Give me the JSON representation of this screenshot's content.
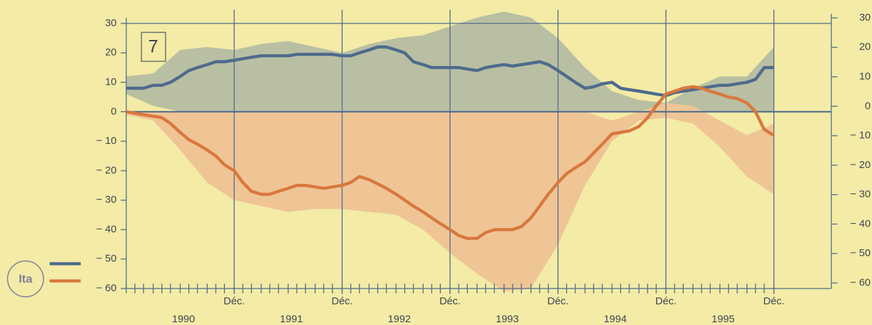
{
  "chart_data": {
    "type": "line",
    "annotation": "7",
    "legend_title": "Ita",
    "x": [
      1989.92,
      1990.0,
      1990.08,
      1990.17,
      1990.25,
      1990.33,
      1990.42,
      1990.5,
      1990.58,
      1990.67,
      1990.75,
      1990.83,
      1990.92,
      1991.0,
      1991.08,
      1991.17,
      1991.25,
      1991.33,
      1991.42,
      1991.5,
      1991.58,
      1991.67,
      1991.75,
      1991.83,
      1991.92,
      1992.0,
      1992.08,
      1992.17,
      1992.25,
      1992.33,
      1992.42,
      1992.5,
      1992.58,
      1992.67,
      1992.75,
      1992.83,
      1992.92,
      1993.0,
      1993.08,
      1993.17,
      1993.25,
      1993.33,
      1993.42,
      1993.5,
      1993.58,
      1993.67,
      1993.75,
      1993.83,
      1993.92,
      1994.0,
      1994.08,
      1994.17,
      1994.25,
      1994.33,
      1994.42,
      1994.5,
      1994.58,
      1994.67,
      1994.75,
      1994.83,
      1994.92,
      1995.0,
      1995.08,
      1995.17,
      1995.25,
      1995.33,
      1995.42,
      1995.5,
      1995.58,
      1995.67,
      1995.75,
      1995.83,
      1995.92
    ],
    "series": [
      {
        "color": "#4d6b8c",
        "values": [
          8,
          8,
          8,
          9,
          9,
          10,
          12,
          14,
          15,
          16,
          17,
          17,
          17.5,
          18,
          18.5,
          19,
          19,
          19,
          19,
          19.5,
          19.5,
          19.5,
          19.5,
          19.5,
          19,
          19,
          20,
          21,
          22,
          22,
          21,
          20,
          17,
          16,
          15,
          15,
          15,
          15,
          14.5,
          14,
          15,
          15.5,
          16,
          15.5,
          16,
          16.5,
          17,
          16,
          14,
          12,
          10,
          8,
          8.5,
          9.5,
          10,
          8,
          7.5,
          7,
          6.5,
          6,
          5.5,
          6.5,
          7,
          7.5,
          8,
          8.5,
          9,
          9,
          9.5,
          10,
          11,
          15,
          15
        ]
      },
      {
        "color": "#d9783d",
        "values": [
          0,
          -0.5,
          -1,
          -1.5,
          -2,
          -4,
          -7,
          -9.5,
          -11,
          -13,
          -15,
          -18,
          -20,
          -24,
          -27,
          -28,
          -28,
          -27,
          -26,
          -25,
          -25,
          -25.5,
          -26,
          -25.5,
          -25,
          -24,
          -22,
          -23,
          -24.5,
          -26,
          -28,
          -30,
          -32,
          -34,
          -36,
          -38,
          -40,
          -42,
          -43,
          -43,
          -41,
          -40,
          -40,
          -40,
          -39,
          -36,
          -32,
          -28,
          -24,
          -21,
          -19,
          -17,
          -14,
          -11,
          -7.5,
          -7,
          -6.5,
          -5,
          -2,
          2,
          6,
          7,
          8,
          8.5,
          8,
          7,
          6,
          5,
          4.5,
          3,
          0,
          -6,
          -8
        ]
      }
    ],
    "band_x": [
      1989.92,
      1990.17,
      1990.42,
      1990.67,
      1990.92,
      1991.17,
      1991.42,
      1991.67,
      1991.92,
      1992.17,
      1992.42,
      1992.67,
      1992.92,
      1993.17,
      1993.42,
      1993.67,
      1993.92,
      1994.17,
      1994.42,
      1994.67,
      1994.92,
      1995.17,
      1995.42,
      1995.67,
      1995.92
    ],
    "bands": [
      {
        "color": "#b9bfa2",
        "upper": [
          12,
          13,
          21,
          22,
          21,
          23,
          24,
          22,
          20,
          23,
          25,
          26,
          29,
          32,
          34,
          32,
          25,
          15,
          7,
          4,
          3,
          8,
          12,
          12,
          22
        ],
        "lower": [
          6,
          2,
          0,
          0,
          0,
          0,
          0,
          0,
          0,
          0,
          0,
          0,
          0,
          0,
          0,
          0,
          0,
          0,
          0,
          0,
          1,
          0,
          0,
          0,
          0
        ]
      },
      {
        "color": "#efc596",
        "upper": [
          0,
          0,
          0,
          0,
          0,
          0,
          0,
          0,
          0,
          0,
          0,
          0,
          0,
          0,
          0,
          0,
          0,
          0,
          -3,
          0,
          3,
          2,
          -3,
          -8,
          -4
        ],
        "lower": [
          -1,
          -3,
          -13,
          -24,
          -30,
          -32,
          -34,
          -33,
          -33,
          -34,
          -35,
          -40,
          -48,
          -55,
          -61,
          -60,
          -45,
          -25,
          -10,
          -3,
          -2,
          -4,
          -12,
          -22,
          -28
        ]
      }
    ],
    "xlim": [
      1989.92,
      1996.42
    ],
    "xticks": [
      {
        "value": 1990.92,
        "label": "Déc."
      },
      {
        "value": 1991.92,
        "label": "Déc."
      },
      {
        "value": 1992.92,
        "label": "Déc."
      },
      {
        "value": 1993.92,
        "label": "Déc."
      },
      {
        "value": 1994.92,
        "label": "Déc."
      },
      {
        "value": 1995.92,
        "label": "Déc."
      }
    ],
    "year_labels": [
      {
        "value": 1990.45,
        "label": "1990"
      },
      {
        "value": 1991.45,
        "label": "1991"
      },
      {
        "value": 1992.45,
        "label": "1992"
      },
      {
        "value": 1993.45,
        "label": "1993"
      },
      {
        "value": 1994.45,
        "label": "1994"
      },
      {
        "value": 1995.45,
        "label": "1995"
      }
    ],
    "ylim": [
      -60,
      30
    ],
    "yticks": [
      30,
      20,
      10,
      0,
      {
        "value": -10,
        "label": "− 10"
      },
      {
        "value": -20,
        "label": "− 20"
      },
      {
        "value": -30,
        "label": "− 30"
      },
      {
        "value": -40,
        "label": "− 40"
      },
      {
        "value": -50,
        "label": "− 50"
      },
      {
        "value": -60,
        "label": "− 60"
      }
    ],
    "y2lim": [
      -60,
      30
    ],
    "y2ticks": [
      30,
      20,
      10,
      0,
      {
        "value": -10,
        "label": "− 10"
      },
      {
        "value": -20,
        "label": "− 20"
      },
      {
        "value": -30,
        "label": "− 30"
      },
      {
        "value": -40,
        "label": "− 40"
      },
      {
        "value": -50,
        "label": "− 50"
      },
      {
        "value": -60,
        "label": "− 60"
      }
    ]
  }
}
